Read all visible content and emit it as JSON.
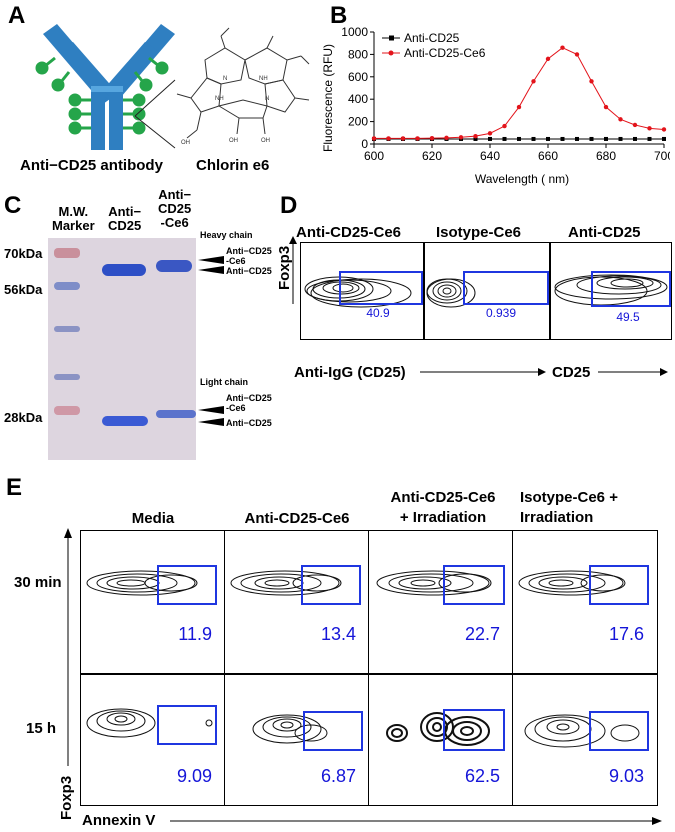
{
  "panelA": {
    "label": "A",
    "antibody_caption": "Anti−CD25 antibody",
    "molecule_caption": "Chlorin e6"
  },
  "panelB": {
    "label": "B",
    "chart_data": {
      "type": "line",
      "xlabel": "Wavelength ( nm)",
      "ylabel": "Fluorescence  (RFU)",
      "xlim": [
        600,
        700
      ],
      "ylim": [
        0,
        1000
      ],
      "xticks": [
        600,
        620,
        640,
        660,
        680,
        700
      ],
      "yticks": [
        0,
        200,
        400,
        600,
        800,
        1000
      ],
      "legend_position": "top-left",
      "x": [
        600,
        605,
        610,
        615,
        620,
        625,
        630,
        635,
        640,
        645,
        650,
        655,
        660,
        665,
        670,
        675,
        680,
        685,
        690,
        695,
        700
      ],
      "series": [
        {
          "name": "Anti-CD25",
          "color": "#000000",
          "marker": "square",
          "values": [
            45,
            45,
            45,
            45,
            45,
            45,
            45,
            45,
            45,
            45,
            45,
            45,
            45,
            45,
            45,
            45,
            45,
            45,
            45,
            45,
            45
          ]
        },
        {
          "name": "Anti-CD25-Ce6",
          "color": "#e3141b",
          "marker": "circle",
          "values": [
            50,
            50,
            50,
            50,
            52,
            55,
            60,
            70,
            95,
            160,
            330,
            560,
            760,
            860,
            800,
            560,
            330,
            220,
            170,
            140,
            130
          ]
        }
      ]
    }
  },
  "panelC": {
    "label": "C",
    "lane_headers": [
      "M.W.\nMarker",
      "Anti−\nCD25",
      "Anti−\nCD25\n-Ce6"
    ],
    "markers": [
      "70kDa",
      "56kDa",
      "28kDa"
    ],
    "heavy_chain_title": "Heavy chain",
    "heavy_chain_labels": [
      "Anti−CD25\n-Ce6",
      "Anti−CD25"
    ],
    "light_chain_title": "Light chain",
    "light_chain_labels": [
      "Anti−CD25\n-Ce6",
      "Anti−CD25"
    ]
  },
  "panelD": {
    "label": "D",
    "columns": [
      "Anti-CD25-Ce6",
      "Isotype-Ce6",
      "Anti-CD25"
    ],
    "values": [
      "40.9",
      "0.939",
      "49.5"
    ],
    "y_axis": "Foxp3",
    "x_axis_left": "Anti-IgG (CD25)",
    "x_axis_right": "CD25"
  },
  "panelE": {
    "label": "E",
    "columns": [
      "Media",
      "Anti-CD25-Ce6",
      "Anti-CD25-Ce6\n+ Irradiation",
      "Isotype-Ce6 +\nIrradiation"
    ],
    "rows": [
      "30 min",
      "15 h"
    ],
    "values": [
      [
        "11.9",
        "13.4",
        "22.7",
        "17.6"
      ],
      [
        "9.09",
        "6.87",
        "62.5",
        "9.03"
      ]
    ],
    "y_axis": "Foxp3",
    "x_axis": "Annexin V"
  }
}
